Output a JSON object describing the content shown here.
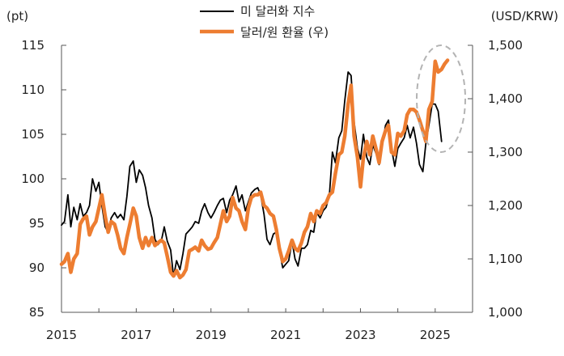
{
  "chart_data": {
    "type": "line",
    "title": "",
    "xlabel": "",
    "left_axis": {
      "unit": "(pt)",
      "min": 85,
      "max": 115,
      "ticks": [
        "85",
        "90",
        "95",
        "100",
        "105",
        "110",
        "115"
      ]
    },
    "right_axis": {
      "unit": "(USD/KRW)",
      "min": 1000,
      "max": 1500,
      "ticks": [
        "1,000",
        "1,100",
        "1,200",
        "1,300",
        "1,400",
        "1,500"
      ]
    },
    "x_axis": {
      "min": 2015,
      "max": 2026,
      "ticks": [
        "2015",
        "2017",
        "2019",
        "2021",
        "2023",
        "2025"
      ]
    },
    "legend": {
      "placement": "top-center"
    },
    "grid": false,
    "series": [
      {
        "name": "미 달러화 지수",
        "axis": "left",
        "color": "#000000",
        "points": [
          [
            2015.0,
            94.8
          ],
          [
            2015.08,
            95.2
          ],
          [
            2015.17,
            98.2
          ],
          [
            2015.25,
            94.6
          ],
          [
            2015.33,
            96.8
          ],
          [
            2015.42,
            95.4
          ],
          [
            2015.5,
            97.2
          ],
          [
            2015.58,
            95.8
          ],
          [
            2015.67,
            96.2
          ],
          [
            2015.75,
            97.0
          ],
          [
            2015.83,
            100.0
          ],
          [
            2015.92,
            98.6
          ],
          [
            2016.0,
            99.6
          ],
          [
            2016.08,
            97.0
          ],
          [
            2016.17,
            94.6
          ],
          [
            2016.25,
            94.0
          ],
          [
            2016.33,
            95.6
          ],
          [
            2016.42,
            96.2
          ],
          [
            2016.5,
            95.6
          ],
          [
            2016.58,
            96.0
          ],
          [
            2016.67,
            95.4
          ],
          [
            2016.75,
            98.0
          ],
          [
            2016.83,
            101.4
          ],
          [
            2016.92,
            102.0
          ],
          [
            2017.0,
            99.6
          ],
          [
            2017.08,
            101.0
          ],
          [
            2017.17,
            100.4
          ],
          [
            2017.25,
            99.0
          ],
          [
            2017.33,
            97.0
          ],
          [
            2017.42,
            95.6
          ],
          [
            2017.5,
            93.2
          ],
          [
            2017.58,
            92.6
          ],
          [
            2017.67,
            93.0
          ],
          [
            2017.75,
            94.6
          ],
          [
            2017.83,
            93.0
          ],
          [
            2017.92,
            92.0
          ],
          [
            2018.0,
            89.0
          ],
          [
            2018.08,
            90.8
          ],
          [
            2018.17,
            89.8
          ],
          [
            2018.25,
            91.6
          ],
          [
            2018.33,
            93.8
          ],
          [
            2018.42,
            94.2
          ],
          [
            2018.5,
            94.6
          ],
          [
            2018.58,
            95.2
          ],
          [
            2018.67,
            95.0
          ],
          [
            2018.75,
            96.4
          ],
          [
            2018.83,
            97.2
          ],
          [
            2018.92,
            96.2
          ],
          [
            2019.0,
            95.6
          ],
          [
            2019.08,
            96.2
          ],
          [
            2019.17,
            97.0
          ],
          [
            2019.25,
            97.6
          ],
          [
            2019.33,
            97.8
          ],
          [
            2019.42,
            96.2
          ],
          [
            2019.5,
            97.6
          ],
          [
            2019.58,
            98.2
          ],
          [
            2019.67,
            99.2
          ],
          [
            2019.75,
            97.4
          ],
          [
            2019.83,
            98.2
          ],
          [
            2019.92,
            96.4
          ],
          [
            2020.0,
            97.4
          ],
          [
            2020.08,
            98.4
          ],
          [
            2020.17,
            98.8
          ],
          [
            2020.25,
            99.0
          ],
          [
            2020.33,
            98.2
          ],
          [
            2020.42,
            96.0
          ],
          [
            2020.5,
            93.2
          ],
          [
            2020.58,
            92.6
          ],
          [
            2020.67,
            93.8
          ],
          [
            2020.75,
            94.0
          ],
          [
            2020.83,
            92.0
          ],
          [
            2020.92,
            90.0
          ],
          [
            2021.0,
            90.4
          ],
          [
            2021.08,
            90.8
          ],
          [
            2021.17,
            93.0
          ],
          [
            2021.25,
            91.0
          ],
          [
            2021.33,
            90.2
          ],
          [
            2021.42,
            92.2
          ],
          [
            2021.5,
            92.2
          ],
          [
            2021.58,
            92.6
          ],
          [
            2021.67,
            94.2
          ],
          [
            2021.75,
            94.0
          ],
          [
            2021.83,
            96.2
          ],
          [
            2021.92,
            95.6
          ],
          [
            2022.0,
            96.4
          ],
          [
            2022.08,
            96.8
          ],
          [
            2022.17,
            98.2
          ],
          [
            2022.25,
            103.0
          ],
          [
            2022.33,
            101.8
          ],
          [
            2022.42,
            104.6
          ],
          [
            2022.5,
            105.4
          ],
          [
            2022.58,
            108.8
          ],
          [
            2022.67,
            112.0
          ],
          [
            2022.75,
            111.6
          ],
          [
            2022.83,
            106.4
          ],
          [
            2022.92,
            103.4
          ],
          [
            2023.0,
            102.2
          ],
          [
            2023.08,
            105.0
          ],
          [
            2023.17,
            102.4
          ],
          [
            2023.25,
            101.6
          ],
          [
            2023.33,
            103.8
          ],
          [
            2023.42,
            102.8
          ],
          [
            2023.5,
            101.6
          ],
          [
            2023.58,
            103.6
          ],
          [
            2023.67,
            106.0
          ],
          [
            2023.75,
            106.6
          ],
          [
            2023.83,
            103.4
          ],
          [
            2023.92,
            101.4
          ],
          [
            2024.0,
            103.4
          ],
          [
            2024.08,
            104.0
          ],
          [
            2024.17,
            104.6
          ],
          [
            2024.25,
            106.0
          ],
          [
            2024.33,
            104.6
          ],
          [
            2024.42,
            105.8
          ],
          [
            2024.5,
            104.0
          ],
          [
            2024.58,
            101.6
          ],
          [
            2024.67,
            100.8
          ],
          [
            2024.75,
            104.0
          ],
          [
            2024.83,
            106.0
          ],
          [
            2024.92,
            108.4
          ],
          [
            2025.0,
            108.4
          ],
          [
            2025.08,
            107.6
          ],
          [
            2025.17,
            104.2
          ]
        ]
      },
      {
        "name": "달러/원 환율 (우)",
        "axis": "right",
        "color": "#ed7d31",
        "points": [
          [
            2015.0,
            1090
          ],
          [
            2015.08,
            1095
          ],
          [
            2015.17,
            1110
          ],
          [
            2015.25,
            1075
          ],
          [
            2015.33,
            1100
          ],
          [
            2015.42,
            1110
          ],
          [
            2015.5,
            1165
          ],
          [
            2015.58,
            1175
          ],
          [
            2015.67,
            1180
          ],
          [
            2015.75,
            1145
          ],
          [
            2015.83,
            1160
          ],
          [
            2015.92,
            1170
          ],
          [
            2016.0,
            1195
          ],
          [
            2016.08,
            1220
          ],
          [
            2016.17,
            1180
          ],
          [
            2016.25,
            1150
          ],
          [
            2016.33,
            1170
          ],
          [
            2016.42,
            1165
          ],
          [
            2016.5,
            1145
          ],
          [
            2016.58,
            1120
          ],
          [
            2016.67,
            1110
          ],
          [
            2016.75,
            1140
          ],
          [
            2016.83,
            1165
          ],
          [
            2016.92,
            1195
          ],
          [
            2017.0,
            1180
          ],
          [
            2017.08,
            1140
          ],
          [
            2017.17,
            1120
          ],
          [
            2017.25,
            1140
          ],
          [
            2017.33,
            1125
          ],
          [
            2017.42,
            1140
          ],
          [
            2017.5,
            1125
          ],
          [
            2017.58,
            1130
          ],
          [
            2017.67,
            1135
          ],
          [
            2017.75,
            1130
          ],
          [
            2017.83,
            1105
          ],
          [
            2017.92,
            1075
          ],
          [
            2018.0,
            1068
          ],
          [
            2018.08,
            1078
          ],
          [
            2018.17,
            1065
          ],
          [
            2018.25,
            1070
          ],
          [
            2018.33,
            1080
          ],
          [
            2018.42,
            1115
          ],
          [
            2018.5,
            1118
          ],
          [
            2018.58,
            1122
          ],
          [
            2018.67,
            1115
          ],
          [
            2018.75,
            1135
          ],
          [
            2018.83,
            1125
          ],
          [
            2018.92,
            1118
          ],
          [
            2019.0,
            1120
          ],
          [
            2019.08,
            1130
          ],
          [
            2019.17,
            1140
          ],
          [
            2019.25,
            1165
          ],
          [
            2019.33,
            1190
          ],
          [
            2019.42,
            1170
          ],
          [
            2019.5,
            1180
          ],
          [
            2019.58,
            1215
          ],
          [
            2019.67,
            1195
          ],
          [
            2019.75,
            1190
          ],
          [
            2019.83,
            1170
          ],
          [
            2019.92,
            1155
          ],
          [
            2020.0,
            1195
          ],
          [
            2020.08,
            1215
          ],
          [
            2020.17,
            1220
          ],
          [
            2020.25,
            1220
          ],
          [
            2020.33,
            1225
          ],
          [
            2020.42,
            1200
          ],
          [
            2020.5,
            1195
          ],
          [
            2020.58,
            1185
          ],
          [
            2020.67,
            1180
          ],
          [
            2020.75,
            1155
          ],
          [
            2020.83,
            1120
          ],
          [
            2020.92,
            1095
          ],
          [
            2021.0,
            1100
          ],
          [
            2021.08,
            1115
          ],
          [
            2021.17,
            1135
          ],
          [
            2021.25,
            1120
          ],
          [
            2021.33,
            1115
          ],
          [
            2021.42,
            1130
          ],
          [
            2021.5,
            1150
          ],
          [
            2021.58,
            1160
          ],
          [
            2021.67,
            1185
          ],
          [
            2021.75,
            1170
          ],
          [
            2021.83,
            1190
          ],
          [
            2021.92,
            1185
          ],
          [
            2022.0,
            1200
          ],
          [
            2022.08,
            1205
          ],
          [
            2022.17,
            1220
          ],
          [
            2022.25,
            1225
          ],
          [
            2022.33,
            1260
          ],
          [
            2022.42,
            1295
          ],
          [
            2022.5,
            1300
          ],
          [
            2022.58,
            1330
          ],
          [
            2022.67,
            1390
          ],
          [
            2022.75,
            1425
          ],
          [
            2022.83,
            1330
          ],
          [
            2022.92,
            1290
          ],
          [
            2023.0,
            1235
          ],
          [
            2023.08,
            1290
          ],
          [
            2023.17,
            1320
          ],
          [
            2023.25,
            1295
          ],
          [
            2023.33,
            1330
          ],
          [
            2023.42,
            1305
          ],
          [
            2023.5,
            1280
          ],
          [
            2023.58,
            1320
          ],
          [
            2023.67,
            1340
          ],
          [
            2023.75,
            1350
          ],
          [
            2023.83,
            1300
          ],
          [
            2023.92,
            1295
          ],
          [
            2024.0,
            1335
          ],
          [
            2024.08,
            1330
          ],
          [
            2024.17,
            1340
          ],
          [
            2024.25,
            1370
          ],
          [
            2024.33,
            1380
          ],
          [
            2024.42,
            1380
          ],
          [
            2024.5,
            1375
          ],
          [
            2024.58,
            1360
          ],
          [
            2024.67,
            1340
          ],
          [
            2024.75,
            1320
          ],
          [
            2024.83,
            1380
          ],
          [
            2024.92,
            1395
          ],
          [
            2025.0,
            1470
          ],
          [
            2025.08,
            1450
          ],
          [
            2025.17,
            1455
          ],
          [
            2025.25,
            1465
          ],
          [
            2025.33,
            1472
          ]
        ]
      }
    ],
    "annotations": [
      {
        "type": "dashed-ellipse",
        "color": "#b3b3b3",
        "around": "2025 values"
      }
    ]
  }
}
